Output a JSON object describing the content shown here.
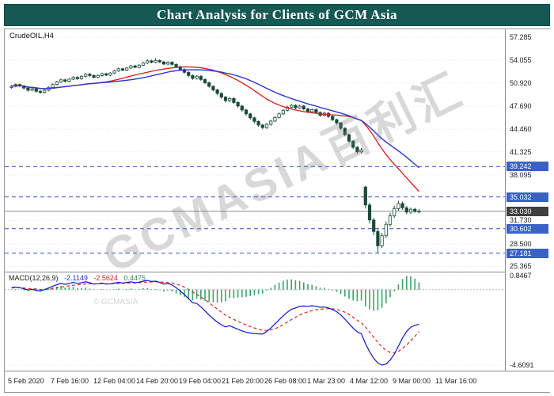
{
  "banner": {
    "title": "Chart Analysis for Clients of GCM Asia"
  },
  "watermark": {
    "text": "GCMASIA百利汇",
    "copyright": "© GCMASIA"
  },
  "colors": {
    "banner_bg": "#165853",
    "banner_fg": "#ffffff",
    "candle_up_fill": "#ffffff",
    "candle_down_fill": "#1c4a38",
    "candle_stroke": "#1c4a38",
    "ma_fast": "#d62a2a",
    "ma_slow": "#2a35cc",
    "level_line": "#2f55c8",
    "level_tag_bg": "#3a62c4",
    "current_tag_bg": "#3f3f3f",
    "macd_line": "#1414cc",
    "macd_signal": "#d62a2a",
    "macd_hist": "#3ba56a"
  },
  "chart_data": {
    "type": "candlestick",
    "x_labels": [
      "5 Feb 2020",
      "7 Feb 16:00",
      "12 Feb 04:00",
      "14 Feb 20:00",
      "19 Feb 04:00",
      "21 Feb 20:00",
      "26 Feb 08:00",
      "1 Mar 23:00",
      "4 Mar 12:00",
      "9 Mar 00:00",
      "11 Mar 16:00"
    ],
    "panels": [
      {
        "type": "candlestick",
        "symbol": "CrudeOIL,H4",
        "y_range": [
          24.6,
          58.4
        ],
        "y_axis_ticks": [
          {
            "value": 57.285,
            "label": "57.285"
          },
          {
            "value": 54.055,
            "label": "54.055"
          },
          {
            "value": 50.92,
            "label": "50.920"
          },
          {
            "value": 47.69,
            "label": "47.690"
          },
          {
            "value": 44.46,
            "label": "44.460"
          },
          {
            "value": 41.325,
            "label": "41.325"
          },
          {
            "value": 38.095,
            "label": "38.095"
          },
          {
            "value": 31.73,
            "label": "31.730"
          },
          {
            "value": 28.5,
            "label": "28.500"
          },
          {
            "value": 25.365,
            "label": "25.365"
          }
        ],
        "levels": [
          {
            "price": 39.242,
            "label": "39.242"
          },
          {
            "price": 35.032,
            "label": "35.032"
          },
          {
            "price": 30.602,
            "label": "30.602"
          },
          {
            "price": 27.181,
            "label": "27.181"
          }
        ],
        "current_price": {
          "price": 33.03,
          "label": "33.030"
        },
        "overlays": [
          {
            "name": "ma-fast",
            "type": "sma",
            "period": 21,
            "color": "#d62a2a"
          },
          {
            "name": "ma-slow",
            "type": "sma",
            "period": 30,
            "color": "#2a35cc"
          }
        ],
        "ohlc": [
          [
            50.3,
            50.65,
            50.1,
            50.45
          ],
          [
            50.45,
            50.85,
            50.3,
            50.7
          ],
          [
            50.7,
            50.85,
            50.3,
            50.5
          ],
          [
            50.5,
            50.65,
            50.0,
            50.2
          ],
          [
            50.2,
            50.35,
            49.7,
            49.9
          ],
          [
            49.9,
            50.3,
            49.75,
            50.1
          ],
          [
            50.1,
            50.25,
            49.55,
            49.75
          ],
          [
            49.75,
            49.95,
            49.4,
            49.6
          ],
          [
            49.6,
            50.05,
            49.45,
            49.9
          ],
          [
            49.9,
            50.45,
            49.75,
            50.3
          ],
          [
            50.3,
            50.85,
            50.15,
            50.7
          ],
          [
            50.7,
            51.2,
            50.55,
            51.05
          ],
          [
            51.05,
            51.5,
            50.9,
            51.35
          ],
          [
            51.35,
            51.5,
            51.0,
            51.15
          ],
          [
            51.15,
            51.6,
            51.0,
            51.45
          ],
          [
            51.45,
            51.85,
            51.3,
            51.7
          ],
          [
            51.7,
            51.85,
            51.35,
            51.5
          ],
          [
            51.5,
            52.0,
            51.35,
            51.85
          ],
          [
            51.85,
            52.3,
            51.7,
            52.15
          ],
          [
            52.15,
            52.3,
            51.8,
            51.95
          ],
          [
            51.95,
            52.1,
            51.55,
            51.7
          ],
          [
            51.7,
            52.1,
            51.55,
            51.95
          ],
          [
            51.95,
            52.35,
            51.8,
            52.2
          ],
          [
            52.2,
            52.35,
            51.85,
            52.0
          ],
          [
            52.0,
            52.45,
            51.85,
            52.3
          ],
          [
            52.3,
            52.75,
            52.15,
            52.6
          ],
          [
            52.6,
            53.05,
            52.45,
            52.9
          ],
          [
            52.9,
            53.05,
            52.55,
            52.7
          ],
          [
            52.7,
            53.15,
            52.55,
            53.0
          ],
          [
            53.0,
            53.45,
            52.85,
            53.3
          ],
          [
            53.3,
            53.45,
            52.95,
            53.1
          ],
          [
            53.1,
            53.55,
            52.95,
            53.4
          ],
          [
            53.4,
            53.85,
            53.25,
            53.7
          ],
          [
            53.7,
            54.2,
            53.55,
            54.0
          ],
          [
            54.0,
            54.15,
            53.65,
            53.8
          ],
          [
            53.8,
            54.4,
            53.65,
            54.05
          ],
          [
            54.05,
            54.2,
            53.7,
            53.85
          ],
          [
            53.85,
            54.0,
            53.4,
            53.55
          ],
          [
            53.55,
            53.95,
            53.4,
            53.8
          ],
          [
            53.8,
            53.95,
            53.35,
            53.5
          ],
          [
            53.5,
            53.65,
            53.05,
            53.2
          ],
          [
            53.2,
            53.35,
            52.65,
            52.8
          ],
          [
            52.8,
            52.95,
            52.2,
            52.4
          ],
          [
            52.4,
            52.55,
            51.75,
            51.95
          ],
          [
            51.95,
            52.1,
            51.35,
            51.55
          ],
          [
            51.55,
            52.0,
            51.4,
            51.85
          ],
          [
            51.85,
            52.0,
            51.2,
            51.4
          ],
          [
            51.4,
            51.55,
            50.75,
            50.95
          ],
          [
            50.95,
            51.1,
            50.25,
            50.45
          ],
          [
            50.45,
            50.6,
            49.75,
            49.95
          ],
          [
            49.95,
            50.1,
            49.2,
            49.45
          ],
          [
            49.45,
            49.6,
            48.7,
            48.95
          ],
          [
            48.95,
            49.1,
            48.2,
            48.45
          ],
          [
            48.45,
            48.95,
            48.25,
            48.75
          ],
          [
            48.75,
            48.9,
            48.0,
            48.2
          ],
          [
            48.2,
            48.35,
            47.45,
            47.7
          ],
          [
            47.7,
            47.85,
            46.9,
            47.15
          ],
          [
            47.15,
            47.3,
            46.35,
            46.6
          ],
          [
            46.6,
            46.75,
            45.8,
            46.05
          ],
          [
            46.05,
            46.2,
            45.3,
            45.55
          ],
          [
            45.55,
            45.7,
            44.8,
            45.05
          ],
          [
            45.05,
            45.2,
            44.45,
            44.7
          ],
          [
            44.7,
            45.35,
            44.5,
            45.15
          ],
          [
            45.15,
            45.8,
            44.95,
            45.6
          ],
          [
            45.6,
            46.3,
            45.45,
            46.1
          ],
          [
            46.1,
            46.8,
            45.95,
            46.6
          ],
          [
            46.6,
            47.3,
            46.45,
            47.1
          ],
          [
            47.1,
            47.75,
            46.95,
            47.55
          ],
          [
            47.55,
            48.0,
            47.4,
            47.8
          ],
          [
            47.8,
            47.95,
            47.25,
            47.45
          ],
          [
            47.45,
            47.9,
            47.3,
            47.7
          ],
          [
            47.7,
            47.85,
            47.1,
            47.3
          ],
          [
            47.3,
            47.45,
            46.7,
            46.9
          ],
          [
            46.9,
            47.4,
            46.75,
            47.2
          ],
          [
            47.2,
            47.35,
            46.6,
            46.8
          ],
          [
            46.8,
            46.95,
            46.2,
            46.4
          ],
          [
            46.4,
            46.9,
            46.25,
            46.7
          ],
          [
            46.7,
            46.85,
            46.05,
            46.25
          ],
          [
            46.25,
            46.4,
            45.6,
            45.8
          ],
          [
            45.8,
            45.95,
            45.1,
            45.35
          ],
          [
            45.35,
            45.45,
            44.35,
            44.6
          ],
          [
            44.6,
            44.75,
            43.45,
            43.7
          ],
          [
            43.7,
            43.85,
            42.55,
            42.8
          ],
          [
            42.8,
            42.95,
            41.7,
            41.95
          ],
          [
            41.95,
            42.1,
            41.05,
            41.3
          ],
          [
            41.3,
            41.85,
            41.1,
            41.6
          ],
          [
            36.4,
            36.6,
            33.4,
            33.9
          ],
          [
            33.9,
            34.2,
            31.3,
            31.8
          ],
          [
            31.8,
            32.1,
            29.7,
            30.2
          ],
          [
            30.2,
            30.5,
            27.18,
            28.2
          ],
          [
            28.2,
            30.0,
            27.9,
            29.6
          ],
          [
            29.6,
            31.6,
            29.3,
            31.2
          ],
          [
            31.2,
            32.8,
            30.9,
            32.4
          ],
          [
            32.4,
            33.8,
            32.1,
            33.4
          ],
          [
            33.4,
            34.5,
            33.1,
            34.1
          ],
          [
            34.1,
            34.4,
            33.2,
            33.5
          ],
          [
            33.5,
            33.75,
            32.6,
            32.9
          ],
          [
            32.9,
            33.55,
            32.65,
            33.3
          ],
          [
            33.3,
            33.5,
            32.8,
            33.0
          ],
          [
            33.0,
            33.35,
            32.75,
            33.03
          ]
        ]
      },
      {
        "type": "macd",
        "label": "MACD(12,26,9)",
        "values_text": [
          "-2.1149",
          "-2.5624",
          "0.4475"
        ],
        "y_range": [
          -4.95,
          1.05
        ],
        "y_axis_ticks": [
          {
            "value": 0.8467,
            "label": "0.8467"
          },
          {
            "value": -4.6091,
            "label": "-4.6091"
          }
        ],
        "macd": [
          0.12,
          0.16,
          0.12,
          0.05,
          -0.02,
          0.02,
          -0.04,
          -0.08,
          0.0,
          0.1,
          0.2,
          0.3,
          0.38,
          0.32,
          0.38,
          0.44,
          0.38,
          0.42,
          0.48,
          0.42,
          0.34,
          0.36,
          0.4,
          0.34,
          0.36,
          0.4,
          0.44,
          0.4,
          0.44,
          0.48,
          0.42,
          0.46,
          0.52,
          0.56,
          0.5,
          0.52,
          0.44,
          0.34,
          0.38,
          0.28,
          0.12,
          -0.08,
          -0.3,
          -0.55,
          -0.8,
          -0.85,
          -1.05,
          -1.3,
          -1.55,
          -1.78,
          -1.98,
          -2.15,
          -2.28,
          -2.2,
          -2.32,
          -2.42,
          -2.52,
          -2.6,
          -2.65,
          -2.68,
          -2.7,
          -2.72,
          -2.55,
          -2.35,
          -2.1,
          -1.85,
          -1.6,
          -1.38,
          -1.2,
          -1.12,
          -1.02,
          -1.0,
          -1.02,
          -0.98,
          -1.02,
          -1.08,
          -1.06,
          -1.12,
          -1.22,
          -1.35,
          -1.55,
          -1.8,
          -2.08,
          -2.35,
          -2.58,
          -2.7,
          -3.3,
          -3.8,
          -4.2,
          -4.48,
          -4.6091,
          -4.55,
          -4.3,
          -3.95,
          -3.45,
          -2.95,
          -2.55,
          -2.3,
          -2.18,
          -2.1149
        ],
        "signal": [
          0.1,
          0.12,
          0.12,
          0.1,
          0.07,
          0.06,
          0.04,
          0.01,
          0.01,
          0.03,
          0.06,
          0.11,
          0.16,
          0.19,
          0.23,
          0.27,
          0.29,
          0.32,
          0.35,
          0.36,
          0.36,
          0.36,
          0.37,
          0.36,
          0.36,
          0.37,
          0.38,
          0.39,
          0.4,
          0.41,
          0.41,
          0.42,
          0.44,
          0.47,
          0.47,
          0.48,
          0.47,
          0.45,
          0.43,
          0.4,
          0.35,
          0.26,
          0.15,
          0.01,
          -0.15,
          -0.29,
          -0.44,
          -0.61,
          -0.8,
          -1.0,
          -1.19,
          -1.38,
          -1.56,
          -1.69,
          -1.82,
          -1.94,
          -2.05,
          -2.16,
          -2.26,
          -2.34,
          -2.42,
          -2.48,
          -2.49,
          -2.46,
          -2.39,
          -2.28,
          -2.14,
          -1.99,
          -1.83,
          -1.69,
          -1.56,
          -1.44,
          -1.36,
          -1.28,
          -1.23,
          -1.2,
          -1.17,
          -1.16,
          -1.17,
          -1.21,
          -1.28,
          -1.38,
          -1.52,
          -1.69,
          -1.87,
          -2.03,
          -2.28,
          -2.59,
          -2.91,
          -3.22,
          -3.5,
          -3.71,
          -3.83,
          -3.85,
          -3.77,
          -3.6,
          -3.38,
          -3.12,
          -2.85,
          -2.5624
        ]
      }
    ]
  }
}
